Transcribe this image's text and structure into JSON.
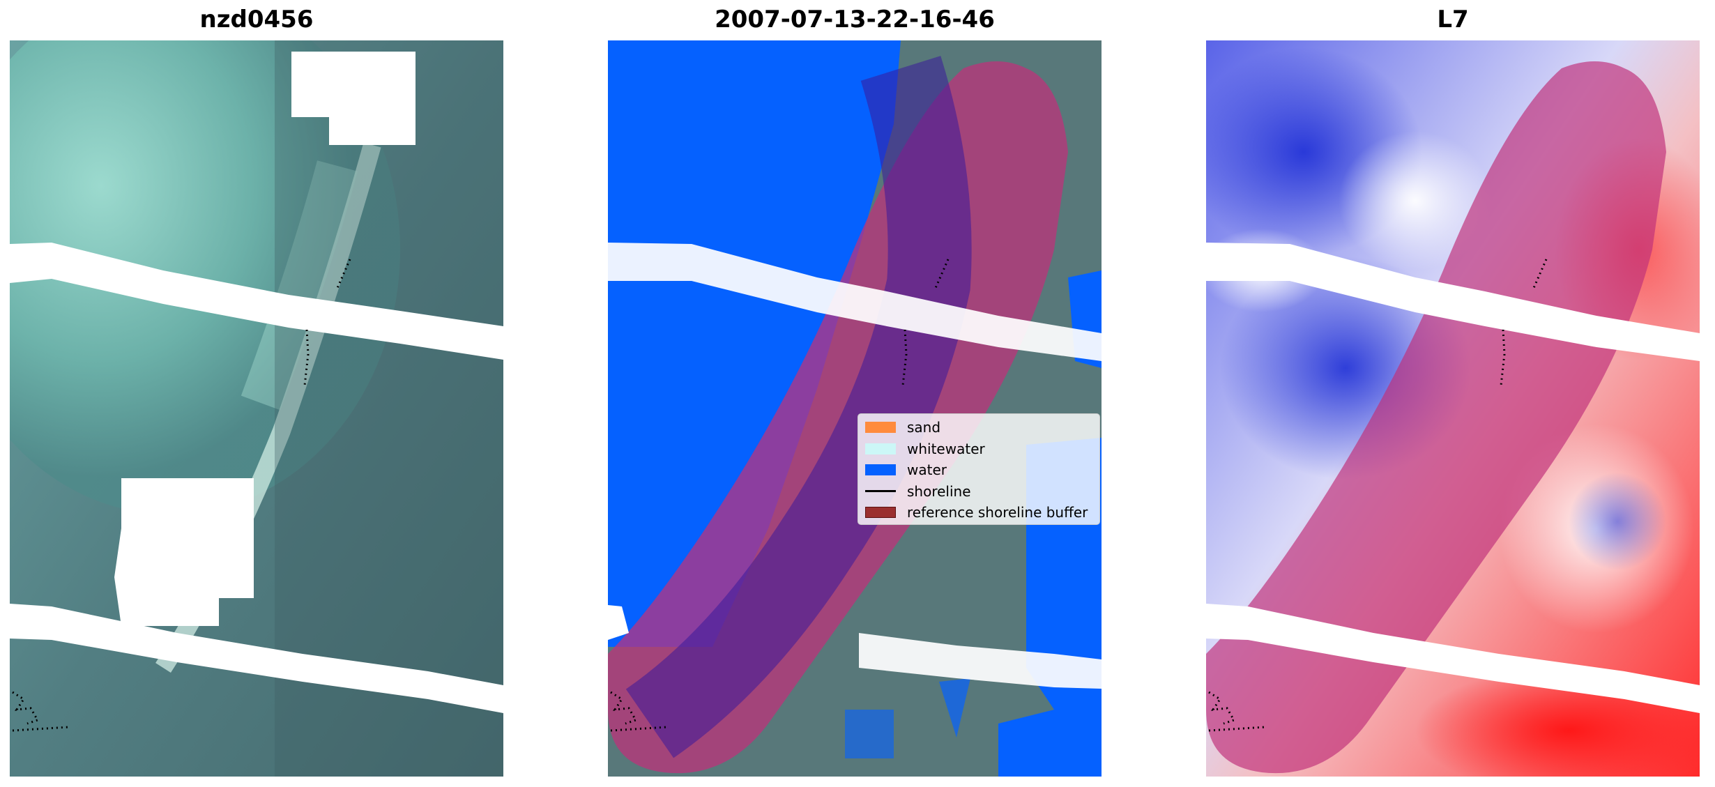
{
  "panels": [
    {
      "title": "nzd0456"
    },
    {
      "title": "2007-07-13-22-16-46"
    },
    {
      "title": "L7"
    }
  ],
  "legend": {
    "items": [
      {
        "label": "sand",
        "kind": "patch",
        "color": "#ff8b3d"
      },
      {
        "label": "whitewater",
        "kind": "patch",
        "color": "#ccf7f7"
      },
      {
        "label": "water",
        "kind": "patch",
        "color": "#0561ff"
      },
      {
        "label": "shoreline",
        "kind": "line",
        "color": "#000000"
      },
      {
        "label": "reference shoreline buffer",
        "kind": "patch",
        "color": "#9b2f2f"
      }
    ]
  },
  "colors": {
    "water_class": "#0561ff",
    "buffer_overlay": "#c0307a",
    "imagery_dark": "#3d6268",
    "imagery_light": "#8fd8cc",
    "index_blue": "#2b3fd8",
    "index_red": "#e81d2a"
  }
}
